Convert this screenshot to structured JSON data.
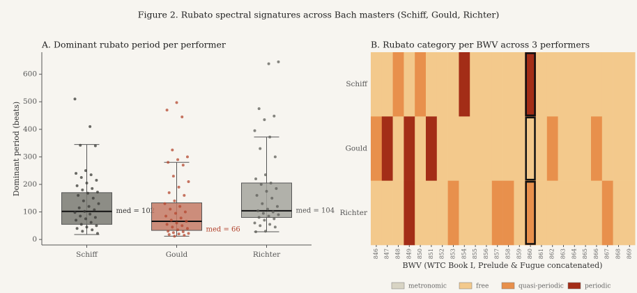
{
  "figure_title": "Figure 2. Rubato spectral signatures across Bach masters (Schiff, Gould, Richter)",
  "chart_data": [
    {
      "type": "box",
      "title": "A. Dominant rubato period per performer",
      "ylabel": "Dominant period (beats)",
      "categories": [
        "Schiff",
        "Gould",
        "Richter"
      ],
      "colors": [
        "#7a7a73",
        "#c47a66",
        "#a5a49d"
      ],
      "point_colors": [
        "#3a3a36",
        "#b4472f",
        "#5e5d58"
      ],
      "label_colors": [
        "#333333",
        "#b0402a",
        "#555555"
      ],
      "whisker_low": [
        18,
        12,
        28
      ],
      "q1": [
        55,
        33,
        80
      ],
      "median": [
        102,
        66,
        104
      ],
      "q3": [
        170,
        133,
        205
      ],
      "whisker_high": [
        345,
        280,
        372
      ],
      "median_labels": [
        "med = 102",
        "med = 66",
        "med = 104"
      ],
      "points": [
        [
          510,
          410,
          342,
          340,
          250,
          240,
          235,
          225,
          215,
          205,
          195,
          185,
          180,
          172,
          168,
          160,
          150,
          140,
          130,
          120,
          115,
          108,
          102,
          98,
          92,
          85,
          80,
          75,
          70,
          62,
          55,
          50,
          45,
          40,
          35,
          30,
          22
        ],
        [
          497,
          470,
          445,
          325,
          300,
          290,
          280,
          270,
          230,
          210,
          190,
          170,
          160,
          140,
          130,
          120,
          110,
          100,
          95,
          85,
          78,
          70,
          66,
          60,
          55,
          50,
          45,
          40,
          35,
          30,
          28,
          25,
          22,
          20,
          18,
          15,
          12
        ],
        [
          645,
          638,
          475,
          448,
          435,
          395,
          372,
          330,
          300,
          235,
          220,
          205,
          200,
          185,
          175,
          160,
          150,
          130,
          120,
          110,
          104,
          100,
          95,
          90,
          85,
          80,
          75,
          70,
          60,
          55,
          50,
          45,
          30,
          28
        ]
      ],
      "ylim": [
        -20,
        680
      ],
      "yticks": [
        0,
        100,
        200,
        300,
        400,
        500,
        600
      ]
    },
    {
      "type": "heatmap",
      "title": "B. Rubato category per BWV across 3 performers",
      "xlabel": "BWV (WTC Book I, Prelude & Fugue concatenated)",
      "categories": [
        "846",
        "847",
        "848",
        "849",
        "850",
        "851",
        "852",
        "853",
        "854",
        "855",
        "856",
        "857",
        "858",
        "859",
        "860",
        "861",
        "862",
        "863",
        "864",
        "865",
        "866",
        "867",
        "868",
        "869"
      ],
      "rows": [
        "Schiff",
        "Gould",
        "Richter"
      ],
      "legend": [
        "metronomic",
        "free",
        "quasi-periodic",
        "periodic"
      ],
      "colors": [
        "#d8d4c4",
        "#f3c98c",
        "#e8904c",
        "#a32d17"
      ],
      "highlight_category": "860",
      "values": [
        [
          1,
          1,
          2,
          1,
          2,
          1,
          1,
          1,
          3,
          1,
          1,
          1,
          1,
          1,
          3,
          1,
          1,
          1,
          1,
          1,
          1,
          1,
          1,
          1
        ],
        [
          2,
          3,
          1,
          3,
          1,
          3,
          1,
          1,
          1,
          1,
          1,
          1,
          1,
          1,
          1,
          1,
          2,
          1,
          1,
          1,
          2,
          1,
          1,
          1
        ],
        [
          1,
          1,
          1,
          3,
          1,
          1,
          1,
          2,
          1,
          1,
          1,
          2,
          2,
          1,
          2,
          1,
          1,
          1,
          1,
          1,
          1,
          2,
          1,
          1
        ]
      ]
    }
  ]
}
